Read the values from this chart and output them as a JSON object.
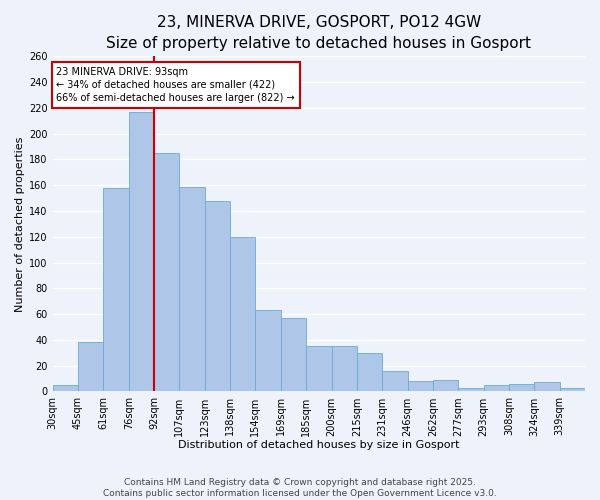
{
  "title": "23, MINERVA DRIVE, GOSPORT, PO12 4GW",
  "subtitle": "Size of property relative to detached houses in Gosport",
  "xlabel": "Distribution of detached houses by size in Gosport",
  "ylabel": "Number of detached properties",
  "bin_labels": [
    "30sqm",
    "45sqm",
    "61sqm",
    "76sqm",
    "92sqm",
    "107sqm",
    "123sqm",
    "138sqm",
    "154sqm",
    "169sqm",
    "185sqm",
    "200sqm",
    "215sqm",
    "231sqm",
    "246sqm",
    "262sqm",
    "277sqm",
    "293sqm",
    "308sqm",
    "324sqm",
    "339sqm"
  ],
  "bar_values": [
    5,
    38,
    158,
    217,
    185,
    159,
    148,
    120,
    63,
    57,
    35,
    35,
    30,
    16,
    8,
    9,
    3,
    5,
    6,
    7,
    3
  ],
  "bar_color": "#aec6e8",
  "bar_edge_color": "#6aaad4",
  "vline_bar_index": 4,
  "vline_color": "#cc0000",
  "annotation_title": "23 MINERVA DRIVE: 93sqm",
  "annotation_line1": "← 34% of detached houses are smaller (422)",
  "annotation_line2": "66% of semi-detached houses are larger (822) →",
  "annotation_box_edge": "#cc0000",
  "ylim": [
    0,
    260
  ],
  "yticks": [
    0,
    20,
    40,
    60,
    80,
    100,
    120,
    140,
    160,
    180,
    200,
    220,
    240,
    260
  ],
  "footer_line1": "Contains HM Land Registry data © Crown copyright and database right 2025.",
  "footer_line2": "Contains public sector information licensed under the Open Government Licence v3.0.",
  "background_color": "#eef2fb",
  "grid_color": "#ffffff",
  "title_fontsize": 11,
  "subtitle_fontsize": 9,
  "axis_label_fontsize": 8,
  "tick_fontsize": 7,
  "footer_fontsize": 6.5
}
